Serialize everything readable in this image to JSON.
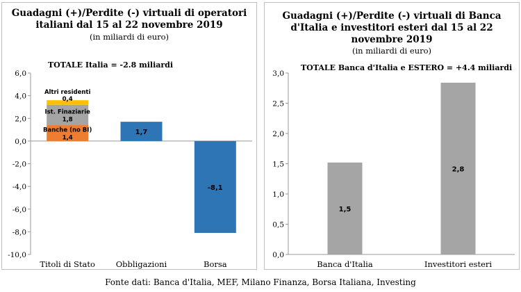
{
  "chart_data": [
    {
      "type": "bar",
      "stacked": true,
      "title": "Guadagni (+)/Perdite (-) virtuali di operatori italiani dal 15 al 22 novembre 2019",
      "title_lines": [
        "Guadagni (+)/Perdite (-) virtuali di operatori",
        "italiani dal 15 al 22 novembre 2019"
      ],
      "subtitle": "(in miliardi di euro)",
      "annotation": "TOTALE Italia = -2.8 miliardi",
      "categories": [
        "Titoli di Stato",
        "Obbligazioni",
        "Borsa"
      ],
      "series": [
        {
          "name": "Banche (no BI)",
          "color": "#ed7d31",
          "values": [
            1.4,
            null,
            null
          ],
          "labels": [
            "1,4",
            "",
            ""
          ]
        },
        {
          "name": "Ist. Finaziarie",
          "color": "#a5a5a5",
          "values": [
            1.8,
            null,
            null
          ],
          "labels": [
            "1,8",
            "",
            ""
          ]
        },
        {
          "name": "Altri residenti",
          "color": "#ffc000",
          "values": [
            0.4,
            null,
            null
          ],
          "labels": [
            "0,4",
            "",
            ""
          ]
        },
        {
          "name": "",
          "color": "#2e75b6",
          "values": [
            null,
            1.7,
            -8.1
          ],
          "labels": [
            "",
            "1,7",
            "-8,1"
          ]
        }
      ],
      "ylim": [
        -10,
        6
      ],
      "yticks": [
        -10,
        -8,
        -6,
        -4,
        -2,
        0,
        2,
        4,
        6
      ],
      "ytick_labels": [
        "-10,0",
        "-8,0",
        "-6,0",
        "-4,0",
        "-2,0",
        "0,0",
        "2,0",
        "4,0",
        "6,0"
      ],
      "grid": false
    },
    {
      "type": "bar",
      "title": "Guadagni (+)/Perdite (-) virtuali di Banca d'Italia e investitori esteri dal 15 al 22 novembre 2019",
      "title_lines": [
        "Guadagni (+)/Perdite (-) virtuali di Banca",
        "d'Italia e investitori esteri dal 15 al 22",
        "novembre 2019"
      ],
      "subtitle": "(in miliardi di euro)",
      "annotation": "TOTALE Banca d'Italia e ESTERO = +4.4 miliardi",
      "categories": [
        "Banca d'Italia",
        "Investitori esteri"
      ],
      "values": [
        1.52,
        2.84
      ],
      "labels": [
        "1,5",
        "2,8"
      ],
      "color": "#a5a5a5",
      "ylim": [
        0,
        3
      ],
      "yticks": [
        0,
        0.5,
        1,
        1.5,
        2,
        2.5,
        3
      ],
      "ytick_labels": [
        "0,0",
        "0,5",
        "1,0",
        "1,5",
        "2,0",
        "2,5",
        "3,0"
      ],
      "grid": false
    }
  ],
  "source": "Fonte dati: Banca d'Italia, MEF, Milano Finanza, Borsa Italiana, Investing"
}
